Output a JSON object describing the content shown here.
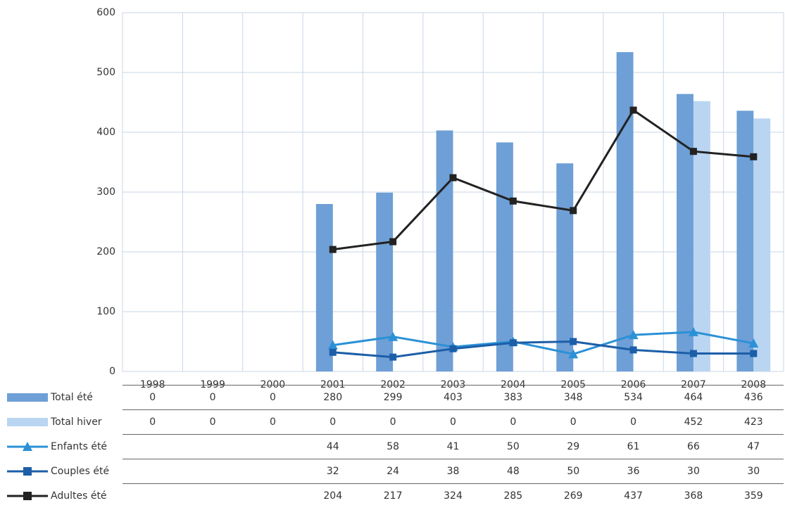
{
  "chart_data": {
    "type": "bar",
    "categories": [
      "1998",
      "1999",
      "2000",
      "2001",
      "2002",
      "2003",
      "2004",
      "2005",
      "2006",
      "2007",
      "2008"
    ],
    "ylim": [
      0,
      600
    ],
    "yticks": [
      0,
      100,
      200,
      300,
      400,
      500,
      600
    ],
    "grid": true,
    "series": [
      {
        "name": "Total été",
        "type": "bar",
        "color": "#6e9fd6",
        "values": [
          0,
          0,
          0,
          280,
          299,
          403,
          383,
          348,
          534,
          464,
          436
        ]
      },
      {
        "name": "Total hiver",
        "type": "bar",
        "color": "#b9d5f1",
        "values": [
          0,
          0,
          0,
          0,
          0,
          0,
          0,
          0,
          0,
          452,
          423
        ]
      },
      {
        "name": "Enfants été",
        "type": "line",
        "marker": "triangle",
        "color": "#2b91d6",
        "values": [
          null,
          null,
          null,
          44,
          58,
          41,
          50,
          29,
          61,
          66,
          47
        ]
      },
      {
        "name": "Couples été",
        "type": "line",
        "marker": "square",
        "color": "#1c5ea8",
        "values": [
          null,
          null,
          null,
          32,
          24,
          38,
          48,
          50,
          36,
          30,
          30
        ]
      },
      {
        "name": "Adultes été",
        "type": "line",
        "marker": "square",
        "color": "#222222",
        "values": [
          null,
          null,
          null,
          204,
          217,
          324,
          285,
          269,
          437,
          368,
          359
        ]
      }
    ]
  }
}
